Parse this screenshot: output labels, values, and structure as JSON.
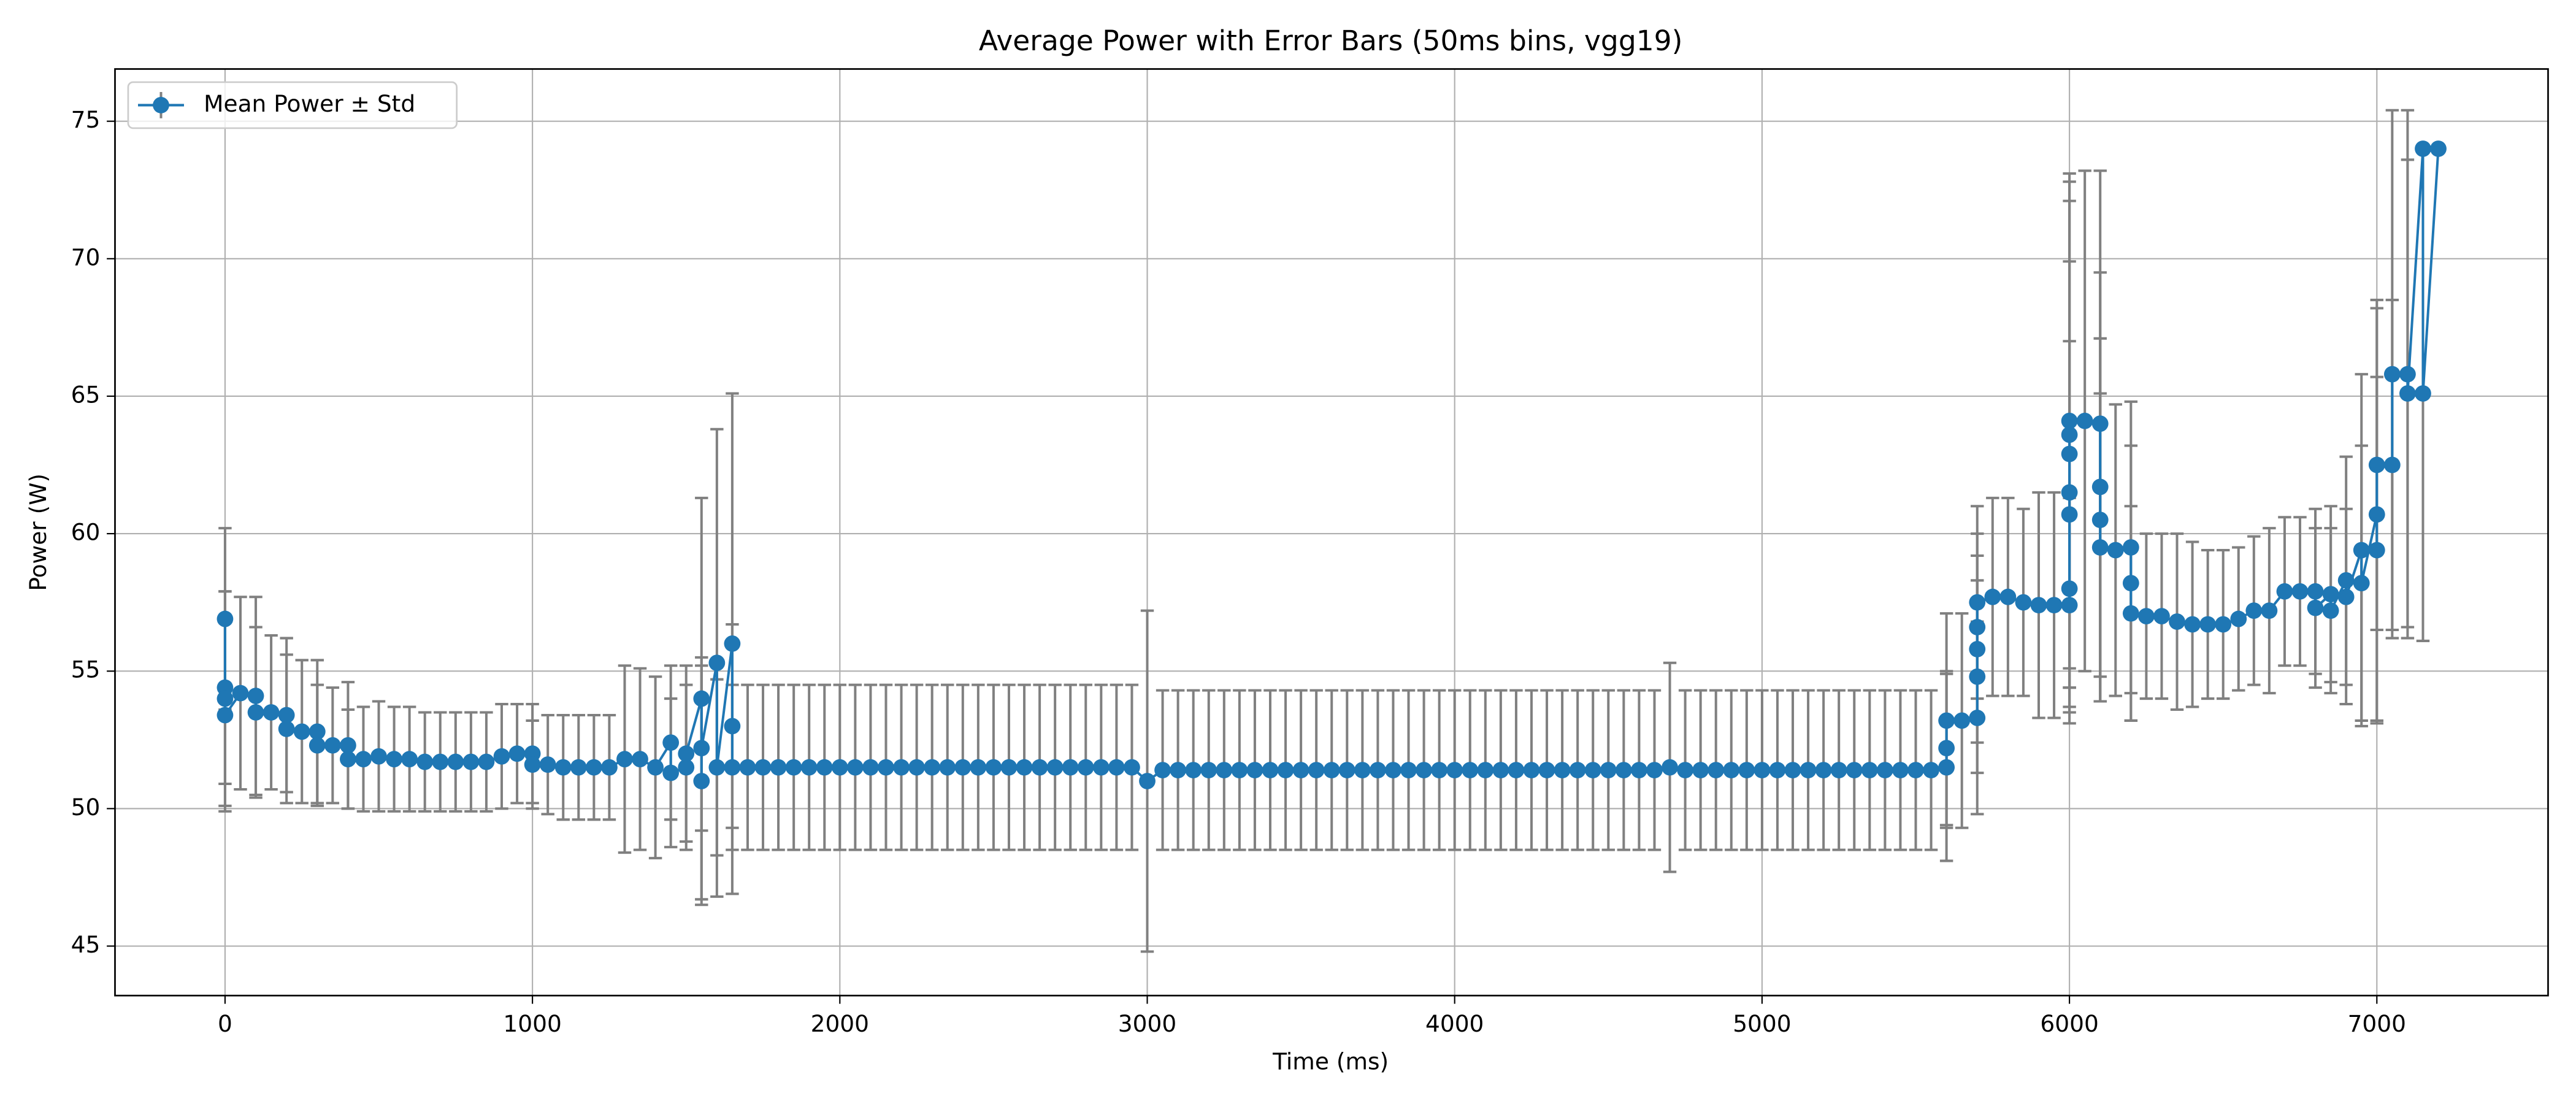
{
  "chart_data": {
    "type": "errorbar",
    "title": "Average Power with Error Bars (50ms bins, vgg19)",
    "x_label": "Time (ms)",
    "y_label": "Power (W)",
    "xlim": [
      -358,
      7557
    ],
    "ylim": [
      43.2,
      76.9
    ],
    "xticks": [
      0,
      1000,
      2000,
      3000,
      4000,
      5000,
      6000,
      7000
    ],
    "yticks": [
      45,
      50,
      55,
      60,
      65,
      70,
      75
    ],
    "grid": true,
    "legend": "upper left",
    "x": [
      0,
      0,
      0,
      0,
      50,
      100,
      100,
      150,
      200,
      200,
      250,
      300,
      300,
      350,
      400,
      400,
      450,
      500,
      550,
      600,
      650,
      700,
      750,
      800,
      850,
      900,
      950,
      1000,
      1000,
      1050,
      1100,
      1150,
      1200,
      1250,
      1300,
      1350,
      1400,
      1450,
      1450,
      1500,
      1500,
      1550,
      1550,
      1550,
      1600,
      1600,
      1650,
      1650,
      1650,
      1700,
      1750,
      1800,
      1850,
      1900,
      1950,
      2000,
      2050,
      2100,
      2150,
      2200,
      2250,
      2300,
      2350,
      2400,
      2450,
      2500,
      2550,
      2600,
      2650,
      2700,
      2750,
      2800,
      2850,
      2900,
      2950,
      3000,
      3050,
      3100,
      3150,
      3200,
      3250,
      3300,
      3350,
      3400,
      3450,
      3500,
      3550,
      3600,
      3650,
      3700,
      3750,
      3800,
      3850,
      3900,
      3950,
      4000,
      4050,
      4100,
      4150,
      4200,
      4250,
      4300,
      4350,
      4400,
      4450,
      4500,
      4550,
      4600,
      4650,
      4700,
      4750,
      4800,
      4850,
      4900,
      4950,
      5000,
      5050,
      5100,
      5150,
      5200,
      5250,
      5300,
      5350,
      5400,
      5450,
      5500,
      5550,
      5600,
      5600,
      5600,
      5650,
      5700,
      5700,
      5700,
      5700,
      5700,
      5750,
      5800,
      5850,
      5900,
      5950,
      6000,
      6000,
      6000,
      6000,
      6000,
      6000,
      6000,
      6050,
      6100,
      6100,
      6100,
      6100,
      6150,
      6200,
      6200,
      6200,
      6250,
      6300,
      6350,
      6400,
      6450,
      6500,
      6550,
      6600,
      6650,
      6700,
      6750,
      6800,
      6800,
      6850,
      6850,
      6900,
      6900,
      6950,
      6950,
      7000,
      7000,
      7000,
      7050,
      7050,
      7100,
      7100,
      7150,
      7150,
      7200
    ],
    "series": [
      {
        "name": "Mean Power ± Std",
        "color": "#1f77b4",
        "error_color": "#808080",
        "values": [
          56.9,
          54.4,
          54.0,
          53.4,
          54.2,
          54.1,
          53.5,
          53.5,
          53.4,
          52.9,
          52.8,
          52.8,
          52.3,
          52.3,
          52.3,
          51.8,
          51.8,
          51.9,
          51.8,
          51.8,
          51.7,
          51.7,
          51.7,
          51.7,
          51.7,
          51.9,
          52.0,
          52.0,
          51.6,
          51.6,
          51.5,
          51.5,
          51.5,
          51.5,
          51.8,
          51.8,
          51.5,
          52.4,
          51.3,
          51.5,
          52.0,
          54.0,
          51.0,
          52.2,
          55.3,
          51.5,
          56.0,
          53.0,
          51.5,
          51.5,
          51.5,
          51.5,
          51.5,
          51.5,
          51.5,
          51.5,
          51.5,
          51.5,
          51.5,
          51.5,
          51.5,
          51.5,
          51.5,
          51.5,
          51.5,
          51.5,
          51.5,
          51.5,
          51.5,
          51.5,
          51.5,
          51.5,
          51.5,
          51.5,
          51.5,
          51.0,
          51.4,
          51.4,
          51.4,
          51.4,
          51.4,
          51.4,
          51.4,
          51.4,
          51.4,
          51.4,
          51.4,
          51.4,
          51.4,
          51.4,
          51.4,
          51.4,
          51.4,
          51.4,
          51.4,
          51.4,
          51.4,
          51.4,
          51.4,
          51.4,
          51.4,
          51.4,
          51.4,
          51.4,
          51.4,
          51.4,
          51.4,
          51.4,
          51.4,
          51.5,
          51.4,
          51.4,
          51.4,
          51.4,
          51.4,
          51.4,
          51.4,
          51.4,
          51.4,
          51.4,
          51.4,
          51.4,
          51.4,
          51.4,
          51.4,
          51.4,
          51.4,
          51.5,
          52.2,
          53.2,
          53.2,
          53.3,
          54.8,
          55.8,
          56.6,
          57.5,
          57.7,
          57.7,
          57.5,
          57.4,
          57.4,
          57.4,
          58.0,
          60.7,
          61.5,
          62.9,
          63.6,
          64.1,
          64.1,
          64.0,
          61.7,
          60.5,
          59.5,
          59.4,
          59.5,
          58.2,
          57.1,
          57.0,
          57.0,
          56.8,
          56.7,
          56.7,
          56.7,
          56.9,
          57.2,
          57.2,
          57.9,
          57.9,
          57.9,
          57.3,
          57.8,
          57.2,
          58.3,
          57.7,
          59.4,
          58.2,
          60.7,
          59.4,
          62.5,
          62.5,
          65.8,
          65.8,
          65.1,
          74.0,
          65.1,
          74.0
        ],
        "errors": [
          3.3,
          3.5,
          3.9,
          3.5,
          3.5,
          3.6,
          3.1,
          2.8,
          2.8,
          2.7,
          2.6,
          2.6,
          2.2,
          2.1,
          2.3,
          1.8,
          1.9,
          2.0,
          1.9,
          1.9,
          1.8,
          1.8,
          1.8,
          1.8,
          1.8,
          1.9,
          1.8,
          1.8,
          1.6,
          1.8,
          1.9,
          1.9,
          1.9,
          1.9,
          3.4,
          3.3,
          3.3,
          2.8,
          2.7,
          3.0,
          3.2,
          7.3,
          4.5,
          3.0,
          8.5,
          3.2,
          9.1,
          3.7,
          3.0,
          3.0,
          3.0,
          3.0,
          3.0,
          3.0,
          3.0,
          3.0,
          3.0,
          3.0,
          3.0,
          3.0,
          3.0,
          3.0,
          3.0,
          3.0,
          3.0,
          3.0,
          3.0,
          3.0,
          3.0,
          3.0,
          3.0,
          3.0,
          3.0,
          3.0,
          3.0,
          6.2,
          2.9,
          2.9,
          2.9,
          2.9,
          2.9,
          2.9,
          2.9,
          2.9,
          2.9,
          2.9,
          2.9,
          2.9,
          2.9,
          2.9,
          2.9,
          2.9,
          2.9,
          2.9,
          2.9,
          2.9,
          2.9,
          2.9,
          2.9,
          2.9,
          2.9,
          2.9,
          2.9,
          2.9,
          2.9,
          2.9,
          2.9,
          2.9,
          2.9,
          3.8,
          2.9,
          2.9,
          2.9,
          2.9,
          2.9,
          2.9,
          2.9,
          2.9,
          2.9,
          2.9,
          2.9,
          2.9,
          2.9,
          2.9,
          2.9,
          2.9,
          2.9,
          3.4,
          2.8,
          3.9,
          3.9,
          3.5,
          3.5,
          3.4,
          3.4,
          3.5,
          3.6,
          3.6,
          3.4,
          4.1,
          4.1,
          3.9,
          3.6,
          6.3,
          8.4,
          9.2,
          9.2,
          9.0,
          9.1,
          9.2,
          7.8,
          6.6,
          5.6,
          5.3,
          5.3,
          5.0,
          3.9,
          3.0,
          3.0,
          3.2,
          3.0,
          2.7,
          2.7,
          2.6,
          2.7,
          3.0,
          2.7,
          2.7,
          3.0,
          2.9,
          3.2,
          3.0,
          4.5,
          3.2,
          6.4,
          5.0,
          7.5,
          6.3,
          6.0,
          6.0,
          9.6,
          9.6,
          8.5,
          0,
          9.0,
          0
        ]
      }
    ]
  }
}
